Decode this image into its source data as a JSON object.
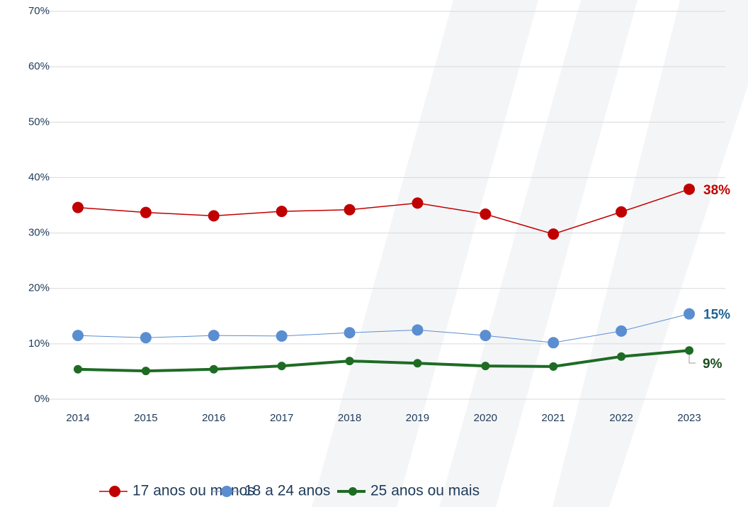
{
  "chart_data": {
    "type": "line",
    "categories": [
      "2014",
      "2015",
      "2016",
      "2017",
      "2018",
      "2019",
      "2020",
      "2021",
      "2022",
      "2023"
    ],
    "ylim": [
      0,
      70
    ],
    "yticks": [
      {
        "value": 0,
        "label": "0%"
      },
      {
        "value": 10,
        "label": "10%"
      },
      {
        "value": 20,
        "label": "20%"
      },
      {
        "value": 30,
        "label": "30%"
      },
      {
        "value": 40,
        "label": "40%"
      },
      {
        "value": 50,
        "label": "50%"
      },
      {
        "value": 60,
        "label": "60%"
      },
      {
        "value": 70,
        "label": "70%"
      }
    ],
    "grid": true,
    "legend": "bottom",
    "series": [
      {
        "name": "17 anos ou menos",
        "color": "#c00000",
        "label_color": "#c00000",
        "line_width": 1.5,
        "marker_size": 8,
        "values": [
          34.6,
          33.7,
          33.1,
          33.9,
          34.2,
          35.4,
          33.4,
          29.8,
          33.8,
          37.9
        ],
        "value_labels": [
          null,
          null,
          null,
          null,
          null,
          null,
          null,
          null,
          null,
          "38%"
        ]
      },
      {
        "name": "18 a 24 anos",
        "color": "#5b8ed0",
        "label_color": "#1f6391",
        "line_width": 1,
        "marker_size": 8,
        "values": [
          11.5,
          11.1,
          11.5,
          11.4,
          12.0,
          12.5,
          11.5,
          10.2,
          12.3,
          15.4
        ],
        "value_labels": [
          null,
          null,
          null,
          null,
          null,
          null,
          null,
          null,
          null,
          "15%"
        ]
      },
      {
        "name": "25 anos ou mais",
        "color": "#1e6b24",
        "label_color": "#1b4d1e",
        "line_width": 4,
        "marker_size": 6,
        "values": [
          5.4,
          5.1,
          5.4,
          6.0,
          6.9,
          6.5,
          6.0,
          5.9,
          7.7,
          8.8
        ],
        "value_labels": [
          null,
          null,
          null,
          null,
          null,
          null,
          null,
          null,
          null,
          "9%"
        ]
      }
    ]
  }
}
